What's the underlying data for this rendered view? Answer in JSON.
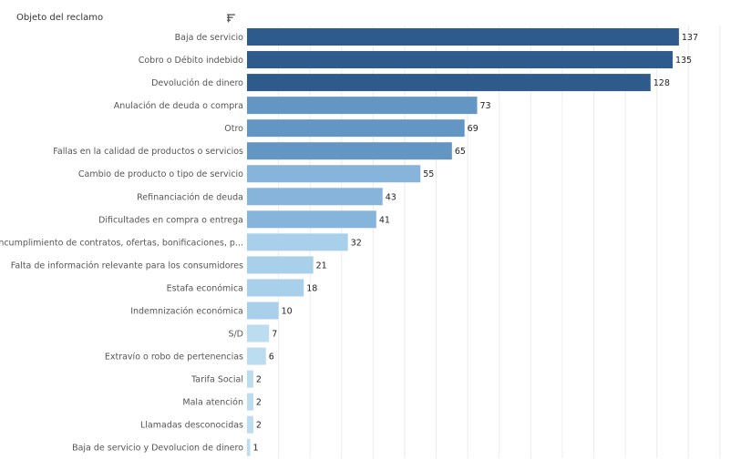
{
  "header": {
    "title": "Objeto del reclamo",
    "sort_icon": "sort-descending-icon"
  },
  "chart_data": {
    "type": "bar",
    "orientation": "horizontal",
    "xlim": [
      0,
      150
    ],
    "grid": true,
    "categories": [
      "Baja de servicio",
      "Cobro o Débito indebido",
      "Devolución de dinero",
      "Anulación de deuda o compra",
      "Otro",
      "Fallas en la calidad de productos o servicios",
      "Cambio de producto o tipo de servicio",
      "Refinanciación de deuda",
      "Dificultades en compra o entrega",
      "Incumplimiento de contratos, ofertas, bonificaciones, p...",
      "Falta de información relevante para los consumidores",
      "Estafa económica",
      "Indemnización económica",
      "S/D",
      "Extravío o robo de pertenencias",
      "Tarifa Social",
      "Mala atención",
      "Llamadas desconocidas",
      "Baja de servicio y Devolucion de dinero"
    ],
    "values": [
      137,
      135,
      128,
      73,
      69,
      65,
      55,
      43,
      41,
      32,
      21,
      18,
      10,
      7,
      6,
      2,
      2,
      2,
      1
    ],
    "colors": {
      "dark": "#2e5b8c",
      "medium": "#6496c4",
      "medium_light": "#87b4da",
      "light": "#a9d0ea",
      "lightest": "#bcdcf0"
    }
  }
}
